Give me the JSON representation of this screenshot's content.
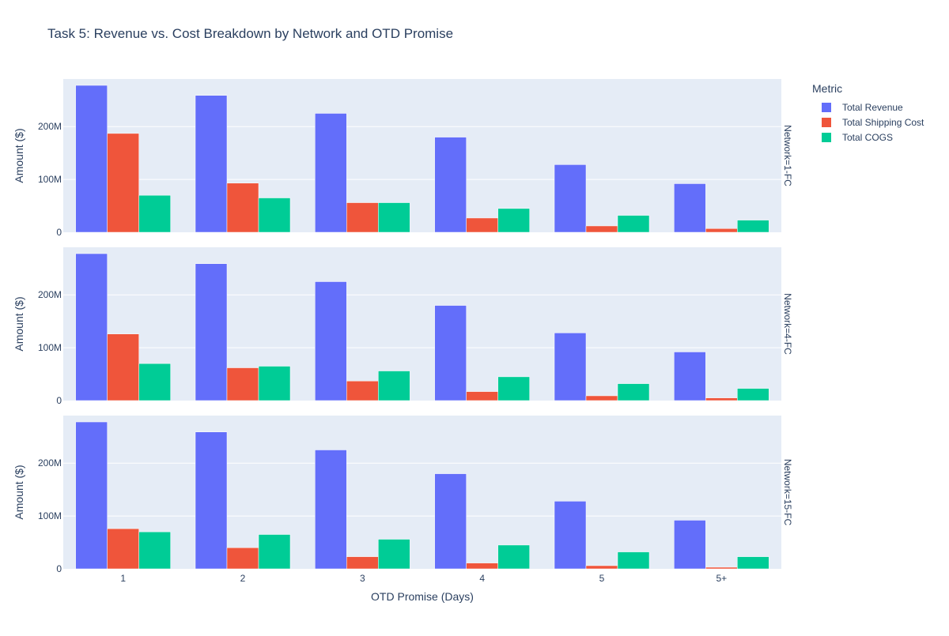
{
  "chart_data": {
    "type": "bar",
    "title": "Task 5: Revenue vs. Cost Breakdown by Network and OTD Promise",
    "xlabel": "OTD Promise (Days)",
    "ylabel": "Amount ($)",
    "categories": [
      "1",
      "2",
      "3",
      "4",
      "5",
      "5+"
    ],
    "ylim": [
      0,
      290000000
    ],
    "yticks": [
      {
        "value": 0,
        "label": "0"
      },
      {
        "value": 100000000,
        "label": "100M"
      },
      {
        "value": 200000000,
        "label": "200M"
      }
    ],
    "legend": {
      "title": "Metric",
      "placement": "right",
      "entries": [
        "Total Revenue",
        "Total Shipping Cost",
        "Total COGS"
      ]
    },
    "colors": [
      "#636efa",
      "#ef553b",
      "#00cc96"
    ],
    "background": "#e5ecf6",
    "grid": true,
    "facets": [
      {
        "label": "Network=1-FC",
        "series": [
          {
            "name": "Total Revenue",
            "values": [
              278000000,
              259000000,
              225000000,
              180000000,
              128000000,
              92000000
            ]
          },
          {
            "name": "Total Shipping Cost",
            "values": [
              187000000,
              93000000,
              56000000,
              27000000,
              12000000,
              7000000
            ]
          },
          {
            "name": "Total COGS",
            "values": [
              70000000,
              65000000,
              56000000,
              45000000,
              32000000,
              23000000
            ]
          }
        ]
      },
      {
        "label": "Network=4-FC",
        "series": [
          {
            "name": "Total Revenue",
            "values": [
              278000000,
              259000000,
              225000000,
              180000000,
              128000000,
              92000000
            ]
          },
          {
            "name": "Total Shipping Cost",
            "values": [
              126000000,
              62000000,
              37000000,
              17000000,
              9000000,
              5000000
            ]
          },
          {
            "name": "Total COGS",
            "values": [
              70000000,
              65000000,
              56000000,
              45000000,
              32000000,
              23000000
            ]
          }
        ]
      },
      {
        "label": "Network=15-FC",
        "series": [
          {
            "name": "Total Revenue",
            "values": [
              278000000,
              259000000,
              225000000,
              180000000,
              128000000,
              92000000
            ]
          },
          {
            "name": "Total Shipping Cost",
            "values": [
              76000000,
              40000000,
              23000000,
              11000000,
              6000000,
              3000000
            ]
          },
          {
            "name": "Total COGS",
            "values": [
              70000000,
              65000000,
              56000000,
              45000000,
              32000000,
              23000000
            ]
          }
        ]
      }
    ]
  }
}
